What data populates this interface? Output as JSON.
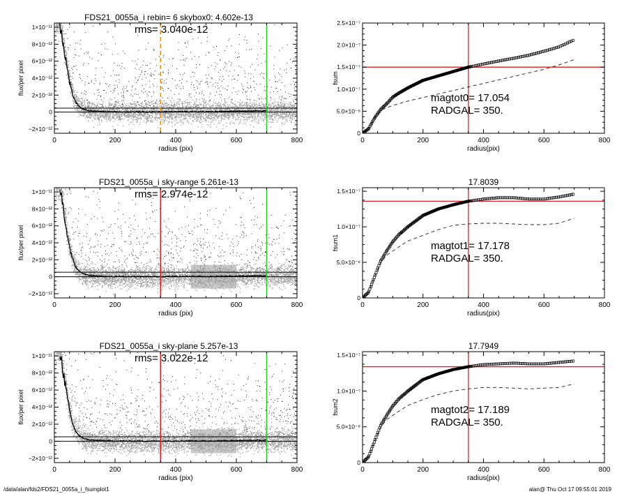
{
  "footer": {
    "left": "/data/alan/fds2/FDS21_0055a_i_fsumplot1",
    "right": "alan@  Thu Oct 17 09:55:01 2019"
  },
  "chart_data": [
    {
      "type": "scatter",
      "title": "FDS21_0055a_i rebin= 6    skybox0:  4.602e-13",
      "annotation": "rms= 3.040e-12",
      "xlabel": "radius (pix)",
      "ylabel": "flux/per pixel",
      "xlim": [
        0,
        800
      ],
      "ylim": [
        -2.5e-12,
        1.05e-11
      ],
      "xticks": [
        0,
        200,
        400,
        600,
        800
      ],
      "xtick_labels": [
        "0",
        "200",
        "400",
        "600",
        "800"
      ],
      "yticks": [
        -2e-12,
        0,
        2e-12,
        4e-12,
        6e-12,
        8e-12,
        1e-11
      ],
      "ytick_labels": [
        "−2×10⁻¹²",
        "0",
        "2×10⁻¹²",
        "4×10⁻¹²",
        "6×10⁻¹²",
        "8×10⁻¹²",
        "1×10⁻¹¹"
      ],
      "hlines": [
        0,
        4.6e-13
      ],
      "vlines": [
        {
          "x": 350,
          "color": "#e8901c",
          "style": "dashed"
        },
        {
          "x": 700,
          "color": "#22cc22",
          "style": "solid"
        }
      ],
      "profile": {
        "x": [
          18,
          25,
          30,
          35,
          40,
          45,
          50,
          55,
          60,
          65,
          70,
          80,
          90,
          100,
          110,
          120,
          140,
          160,
          180,
          200,
          250,
          300,
          350,
          400,
          450,
          500,
          550,
          600,
          650,
          700
        ],
        "y": [
          1.05e-11,
          9.2e-12,
          8e-12,
          6.8e-12,
          5.6e-12,
          4.6e-12,
          3.6e-12,
          2.8e-12,
          2.1e-12,
          1.6e-12,
          1.2e-12,
          7e-13,
          4.5e-13,
          3e-13,
          2e-13,
          1.5e-13,
          1e-13,
          6e-14,
          4e-14,
          3e-14,
          2e-14,
          1.5e-14,
          3e-14,
          5e-14,
          6e-14,
          4e-14,
          8e-14,
          1e-13,
          1.2e-13,
          1.5e-13
        ]
      },
      "scatter_rms": 3.04e-12
    },
    {
      "type": "line",
      "xlabel": "radius(pix)",
      "ylabel": "fsum",
      "xlim": [
        0,
        800
      ],
      "ylim": [
        0,
        2.5e-07
      ],
      "xticks": [
        0,
        200,
        400,
        600,
        800
      ],
      "xtick_labels": [
        "0",
        "200",
        "400",
        "600",
        "800"
      ],
      "yticks": [
        0,
        5e-08,
        1e-07,
        1.5e-07,
        2e-07,
        2.5e-07
      ],
      "ytick_labels": [
        "0",
        "5.0×10⁻⁸",
        "1.0×10⁻⁷",
        "1.5×10⁻⁷",
        "2.0×10⁻⁷",
        "2.5×10⁻⁷"
      ],
      "annotations": [
        "magtot0=  17.054",
        "RADGAL=    350."
      ],
      "hline": 1.5e-07,
      "vline": 350,
      "series": [
        {
          "x": [
            0,
            20,
            40,
            60,
            80,
            100,
            120,
            150,
            200,
            250,
            300,
            350,
            400,
            450,
            500,
            550,
            600,
            650,
            700
          ],
          "values": [
            0,
            1e-08,
            3.5e-08,
            5.4e-08,
            6.7e-08,
            8.2e-08,
            9.1e-08,
            1.03e-07,
            1.2e-07,
            1.3e-07,
            1.4e-07,
            1.5e-07,
            1.57e-07,
            1.64e-07,
            1.7e-07,
            1.77e-07,
            1.86e-07,
            1.96e-07,
            2.12e-07
          ]
        },
        {
          "x": [
            0,
            20,
            40,
            60,
            80,
            100,
            150,
            200,
            250,
            300,
            350,
            400,
            450,
            500,
            550,
            600,
            650,
            700
          ],
          "values": [
            0,
            1e-08,
            3.5e-08,
            5.2e-08,
            5.8e-08,
            6.3e-08,
            7.3e-08,
            8.1e-08,
            8.9e-08,
            9.7e-08,
            1.05e-07,
            1.13e-07,
            1.21e-07,
            1.29e-07,
            1.37e-07,
            1.45e-07,
            1.55e-07,
            1.67e-07
          ]
        }
      ]
    },
    {
      "type": "scatter",
      "title": "FDS21_0055a_i sky-range  5.261e-13",
      "annotation": "rms= 2.974e-12",
      "xlabel": "radius (pix)",
      "ylabel": "flux/per pixel",
      "xlim": [
        0,
        800
      ],
      "ylim": [
        -2.5e-12,
        1.05e-11
      ],
      "xticks": [
        0,
        200,
        400,
        600,
        800
      ],
      "xtick_labels": [
        "0",
        "200",
        "400",
        "600",
        "800"
      ],
      "yticks": [
        -2e-12,
        0,
        2e-12,
        4e-12,
        6e-12,
        8e-12,
        1e-11
      ],
      "ytick_labels": [
        "−2×10⁻¹²",
        "0",
        "2×10⁻¹²",
        "4×10⁻¹²",
        "6×10⁻¹²",
        "8×10⁻¹²",
        "1×10⁻¹¹"
      ],
      "hlines": [
        0,
        5.3e-13
      ],
      "vlines": [
        {
          "x": 350,
          "color": "#e02020",
          "style": "solid"
        },
        {
          "x": 700,
          "color": "#22cc22",
          "style": "solid"
        }
      ],
      "profile": {
        "x": [
          18,
          25,
          30,
          35,
          40,
          45,
          50,
          55,
          60,
          65,
          70,
          80,
          90,
          100,
          110,
          120,
          140,
          160,
          180,
          200,
          250,
          300,
          350,
          400,
          450,
          500,
          550,
          600,
          650,
          700
        ],
        "y": [
          1.05e-11,
          9.2e-12,
          8e-12,
          6.8e-12,
          5.6e-12,
          4.6e-12,
          3.6e-12,
          2.8e-12,
          2.1e-12,
          1.6e-12,
          1.2e-12,
          7e-13,
          4.5e-13,
          3e-13,
          2e-13,
          1.5e-13,
          1e-13,
          6e-14,
          4e-14,
          3e-14,
          2e-14,
          1.5e-14,
          2e-14,
          4e-14,
          5e-14,
          3e-14,
          6e-14,
          8e-14,
          1e-13,
          1.2e-13
        ]
      },
      "scatter_rms": 2.974e-12,
      "shaded_ranges": [
        [
          450,
          600
        ]
      ]
    },
    {
      "type": "line",
      "title": "17.8039",
      "xlabel": "radius(pix)",
      "ylabel": "fsum1",
      "xlim": [
        0,
        800
      ],
      "ylim": [
        0,
        1.55e-07
      ],
      "xticks": [
        0,
        200,
        400,
        600,
        800
      ],
      "xtick_labels": [
        "0",
        "200",
        "400",
        "600",
        "800"
      ],
      "yticks": [
        0,
        5e-08,
        1e-07,
        1.5e-07
      ],
      "ytick_labels": [
        "0",
        "5.0×10⁻⁸",
        "1.0×10⁻⁷",
        "1.5×10⁻⁷"
      ],
      "annotations": [
        "magtot1=  17.178",
        "RADGAL=    350."
      ],
      "hline": 1.36e-07,
      "vline": 350,
      "series": [
        {
          "x": [
            0,
            20,
            40,
            60,
            80,
            100,
            120,
            150,
            200,
            250,
            300,
            350,
            400,
            450,
            500,
            550,
            600,
            650,
            700
          ],
          "values": [
            0,
            8e-09,
            3e-08,
            5.2e-08,
            6.6e-08,
            7.9e-08,
            8.9e-08,
            1e-07,
            1.16e-07,
            1.25e-07,
            1.31e-07,
            1.36e-07,
            1.39e-07,
            1.41e-07,
            1.41e-07,
            1.39e-07,
            1.39e-07,
            1.42e-07,
            1.46e-07
          ]
        },
        {
          "x": [
            0,
            20,
            40,
            60,
            80,
            100,
            150,
            200,
            250,
            300,
            350,
            400,
            450,
            500,
            550,
            600,
            650,
            700
          ],
          "values": [
            0,
            8e-09,
            3e-08,
            5e-08,
            6e-08,
            6.6e-08,
            8e-08,
            8.8e-08,
            9.6e-08,
            1.02e-07,
            1.04e-07,
            1.05e-07,
            1.05e-07,
            1.04e-07,
            1.03e-07,
            1.03e-07,
            1.05e-07,
            1.12e-07
          ]
        }
      ]
    },
    {
      "type": "scatter",
      "title": "FDS21_0055a_i sky-plane  5.257e-13",
      "annotation": "rms= 3.022e-12",
      "xlabel": "radius (pix)",
      "ylabel": "flux/per pixel",
      "xlim": [
        0,
        800
      ],
      "ylim": [
        -2.5e-12,
        1.05e-11
      ],
      "xticks": [
        0,
        200,
        400,
        600,
        800
      ],
      "xtick_labels": [
        "0",
        "200",
        "400",
        "600",
        "800"
      ],
      "yticks": [
        -2e-12,
        0,
        2e-12,
        4e-12,
        6e-12,
        8e-12,
        1e-11
      ],
      "ytick_labels": [
        "−2×10⁻¹²",
        "0",
        "2×10⁻¹²",
        "4×10⁻¹²",
        "6×10⁻¹²",
        "8×10⁻¹²",
        "1×10⁻¹¹"
      ],
      "hlines": [
        0,
        5.3e-13
      ],
      "vlines": [
        {
          "x": 350,
          "color": "#e02020",
          "style": "solid"
        },
        {
          "x": 700,
          "color": "#22cc22",
          "style": "solid"
        }
      ],
      "profile": {
        "x": [
          18,
          25,
          30,
          35,
          40,
          45,
          50,
          55,
          60,
          65,
          70,
          80,
          90,
          100,
          110,
          120,
          140,
          160,
          180,
          200,
          250,
          300,
          350,
          400,
          450,
          500,
          550,
          600,
          650,
          700
        ],
        "y": [
          1.05e-11,
          9.2e-12,
          8e-12,
          6.8e-12,
          5.6e-12,
          4.6e-12,
          3.6e-12,
          2.8e-12,
          2.1e-12,
          1.6e-12,
          1.2e-12,
          7e-13,
          4.5e-13,
          3e-13,
          2e-13,
          1.5e-13,
          1e-13,
          6e-14,
          4e-14,
          3e-14,
          2e-14,
          1.5e-14,
          2e-14,
          4e-14,
          5e-14,
          3e-14,
          6e-14,
          8e-14,
          1e-13,
          1.2e-13
        ]
      },
      "scatter_rms": 3.022e-12,
      "shaded_ranges": [
        [
          450,
          600
        ]
      ]
    },
    {
      "type": "line",
      "title": "17.7949",
      "xlabel": "radius(pix)",
      "ylabel": "fsum2",
      "xlim": [
        0,
        800
      ],
      "ylim": [
        0,
        1.55e-07
      ],
      "xticks": [
        0,
        200,
        400,
        600,
        800
      ],
      "xtick_labels": [
        "0",
        "200",
        "400",
        "600",
        "800"
      ],
      "yticks": [
        0,
        5e-08,
        1e-07,
        1.5e-07
      ],
      "ytick_labels": [
        "0",
        "5.0×10⁻⁸",
        "1.0×10⁻⁷",
        "1.5×10⁻⁷"
      ],
      "annotations": [
        "magtot2=  17.189",
        "RADGAL=    350."
      ],
      "hline": 1.34e-07,
      "vline": 350,
      "series": [
        {
          "x": [
            0,
            20,
            40,
            60,
            80,
            100,
            120,
            150,
            200,
            250,
            300,
            350,
            400,
            450,
            500,
            550,
            600,
            650,
            700
          ],
          "values": [
            0,
            8e-09,
            3e-08,
            5.2e-08,
            6.6e-08,
            7.9e-08,
            8.9e-08,
            1e-07,
            1.16e-07,
            1.24e-07,
            1.3e-07,
            1.34e-07,
            1.37e-07,
            1.38e-07,
            1.39e-07,
            1.38e-07,
            1.38e-07,
            1.4e-07,
            1.42e-07
          ]
        },
        {
          "x": [
            0,
            20,
            40,
            60,
            80,
            100,
            150,
            200,
            250,
            300,
            350,
            400,
            450,
            500,
            550,
            600,
            650,
            700
          ],
          "values": [
            0,
            8e-09,
            3e-08,
            5e-08,
            6e-08,
            6.6e-08,
            8e-08,
            8.8e-08,
            9.5e-08,
            1e-07,
            1.03e-07,
            1.05e-07,
            1.05e-07,
            1.04e-07,
            1.03e-07,
            1.04e-07,
            1.05e-07,
            1.1e-07
          ]
        }
      ]
    }
  ]
}
